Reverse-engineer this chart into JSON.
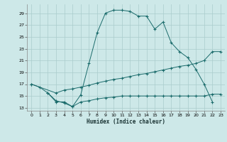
{
  "xlabel": "Humidex (Indice chaleur)",
  "background_color": "#cde8e8",
  "grid_color": "#aacccc",
  "line_color": "#1a6b6b",
  "xlim": [
    -0.5,
    23.5
  ],
  "ylim": [
    12.5,
    30.5
  ],
  "xticks": [
    0,
    1,
    2,
    3,
    4,
    5,
    6,
    7,
    8,
    9,
    10,
    11,
    12,
    13,
    14,
    15,
    16,
    17,
    18,
    19,
    20,
    21,
    22,
    23
  ],
  "yticks": [
    13,
    15,
    17,
    19,
    21,
    23,
    25,
    27,
    29
  ],
  "line1_x": [
    0,
    1,
    2,
    3,
    4,
    5,
    6,
    7,
    8,
    9,
    10,
    11,
    12,
    13,
    14,
    15,
    16,
    17,
    18,
    19,
    20,
    21,
    22
  ],
  "line1_y": [
    17,
    16.5,
    15.5,
    14.0,
    14.0,
    13.2,
    15.2,
    20.5,
    25.7,
    29.0,
    29.5,
    29.5,
    29.3,
    28.5,
    28.5,
    26.3,
    27.5,
    24.0,
    22.5,
    21.5,
    19.5,
    17.0,
    14.0
  ],
  "line2_x": [
    0,
    3,
    4,
    5,
    6,
    7,
    8,
    9,
    10,
    11,
    12,
    13,
    14,
    15,
    16,
    17,
    18,
    19,
    20,
    21,
    22,
    23
  ],
  "line2_y": [
    17,
    15.5,
    16.0,
    16.2,
    16.5,
    16.8,
    17.2,
    17.5,
    17.8,
    18.0,
    18.3,
    18.6,
    18.8,
    19.1,
    19.4,
    19.7,
    20.0,
    20.2,
    20.5,
    21.0,
    22.5,
    22.5
  ],
  "line3_x": [
    2,
    3,
    4,
    5,
    6,
    7,
    8,
    9,
    10,
    11,
    12,
    13,
    14,
    15,
    16,
    17,
    18,
    19,
    20,
    21,
    22,
    23
  ],
  "line3_y": [
    15.5,
    14.2,
    13.8,
    13.2,
    14.0,
    14.2,
    14.5,
    14.7,
    14.8,
    15.0,
    15.0,
    15.0,
    15.0,
    15.0,
    15.0,
    15.0,
    15.0,
    15.0,
    15.0,
    15.0,
    15.3,
    15.3
  ]
}
